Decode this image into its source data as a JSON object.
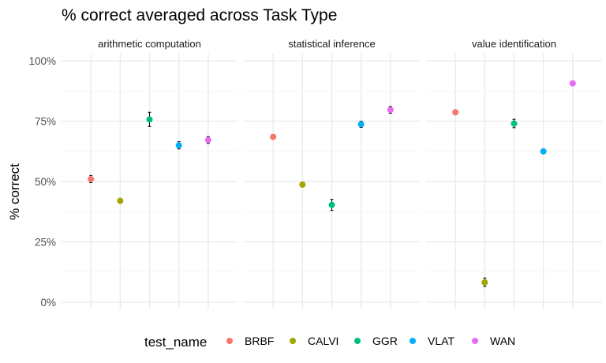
{
  "chart_data": {
    "type": "scatter",
    "title": "% correct averaged across Task Type",
    "xlabel": "",
    "ylabel": "% correct",
    "ylim": [
      -0.03,
      1.03
    ],
    "yticks": [
      {
        "value": 0,
        "label": "0%"
      },
      {
        "value": 0.25,
        "label": "25%"
      },
      {
        "value": 0.5,
        "label": "50%"
      },
      {
        "value": 0.75,
        "label": "75%"
      },
      {
        "value": 1,
        "label": "100%"
      }
    ],
    "grid": true,
    "legend": {
      "title": "test_name",
      "placement": "bottom"
    },
    "categories": [
      "BRBF",
      "CALVI",
      "GGR",
      "VLAT",
      "WAN"
    ],
    "colors": {
      "BRBF": "#F8766D",
      "CALVI": "#A3A500",
      "GGR": "#00BF7D",
      "VLAT": "#00B0F6",
      "WAN": "#E76BF3"
    },
    "panels": [
      {
        "label": "arithmetic computation",
        "points": [
          {
            "test": "BRBF",
            "y": 0.51,
            "low": 0.495,
            "high": 0.525
          },
          {
            "test": "CALVI",
            "y": 0.42,
            "low": 0.42,
            "high": 0.42
          },
          {
            "test": "GGR",
            "y": 0.757,
            "low": 0.728,
            "high": 0.787
          },
          {
            "test": "VLAT",
            "y": 0.65,
            "low": 0.635,
            "high": 0.665
          },
          {
            "test": "WAN",
            "y": 0.672,
            "low": 0.658,
            "high": 0.686
          }
        ]
      },
      {
        "label": "statistical inference",
        "points": [
          {
            "test": "BRBF",
            "y": 0.685,
            "low": 0.685,
            "high": 0.685
          },
          {
            "test": "CALVI",
            "y": 0.487,
            "low": 0.487,
            "high": 0.487
          },
          {
            "test": "GGR",
            "y": 0.403,
            "low": 0.38,
            "high": 0.426
          },
          {
            "test": "VLAT",
            "y": 0.737,
            "low": 0.724,
            "high": 0.75
          },
          {
            "test": "WAN",
            "y": 0.797,
            "low": 0.783,
            "high": 0.811
          }
        ]
      },
      {
        "label": "value identification",
        "points": [
          {
            "test": "BRBF",
            "y": 0.787,
            "low": 0.787,
            "high": 0.787
          },
          {
            "test": "CALVI",
            "y": 0.082,
            "low": 0.065,
            "high": 0.1
          },
          {
            "test": "GGR",
            "y": 0.74,
            "low": 0.723,
            "high": 0.758
          },
          {
            "test": "VLAT",
            "y": 0.625,
            "low": 0.625,
            "high": 0.625
          },
          {
            "test": "WAN",
            "y": 0.907,
            "low": 0.907,
            "high": 0.907
          }
        ]
      }
    ]
  }
}
